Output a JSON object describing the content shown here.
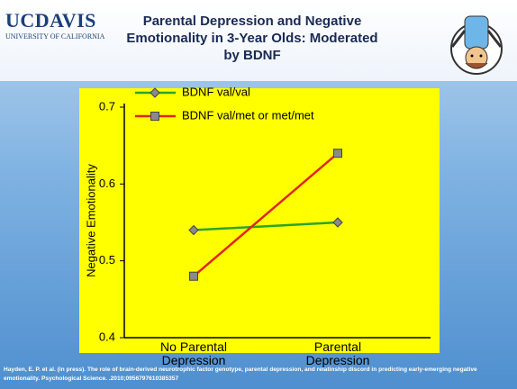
{
  "header": {
    "logo": "UCDAVIS",
    "logo_subtitle": "UNIVERSITY OF CALIFORNIA"
  },
  "chart_data": {
    "type": "line",
    "title": "Parental Depression and Negative Emotionality in 3-Year Olds: Moderated by BDNF",
    "y_label": "Negative Emotionality",
    "categories": [
      "No Parental Depression",
      "Parental Depression"
    ],
    "series": [
      {
        "name": "BDNF val/val",
        "color": "#2aa52a",
        "marker": "diamond",
        "values": [
          0.54,
          0.55
        ]
      },
      {
        "name": "BDNF val/met or met/met",
        "color": "#e0251b",
        "marker": "square",
        "values": [
          0.48,
          0.64
        ]
      }
    ],
    "ylim": [
      0.4,
      0.7
    ],
    "yticks": [
      0.4,
      0.5,
      0.6,
      0.7
    ]
  },
  "footer": {
    "citation": "Hayden, E. P. et al. (in press). The role of brain-derived neurotrophic factor genotype, parental depression, and relatinship discord in predicting early-emerging negative emotionality. Psychological Science. .2010;0956797610385357"
  }
}
